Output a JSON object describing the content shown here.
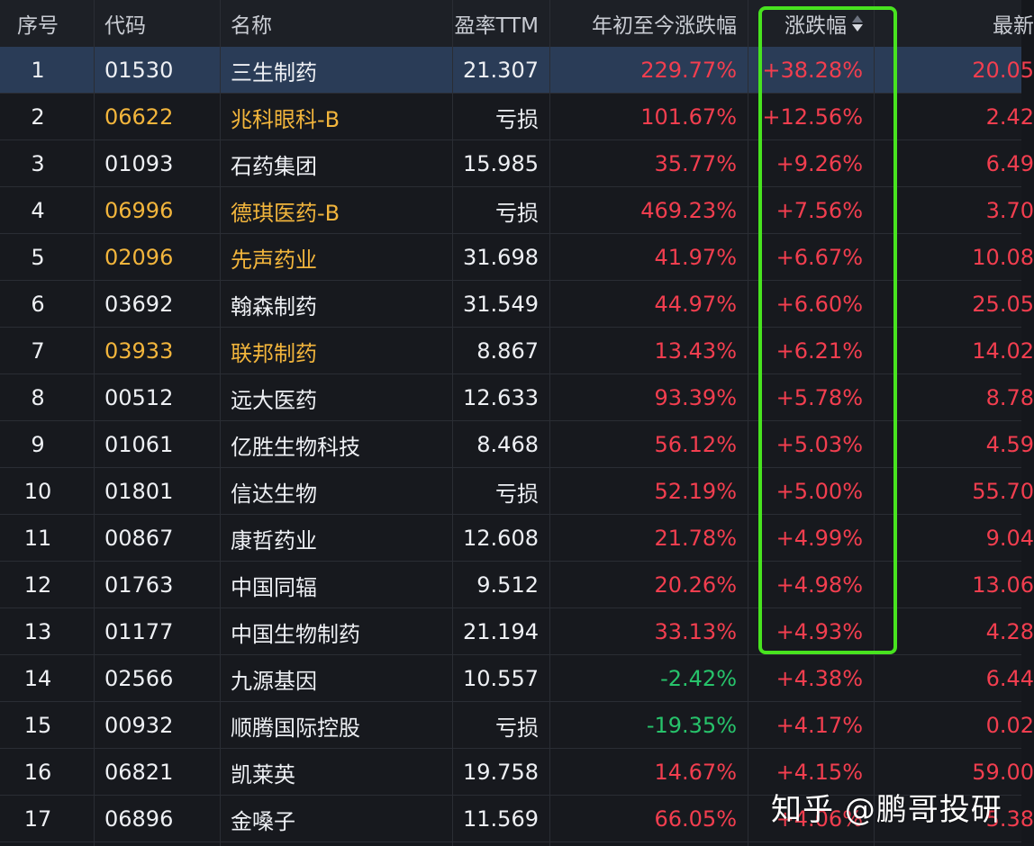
{
  "header": {
    "seq": "序号",
    "code": "代码",
    "name": "名称",
    "pe": "盈率TTM",
    "ytd": "年初至今涨跌幅",
    "chg": "涨跌幅",
    "last": "最新"
  },
  "rows": [
    {
      "seq": "1",
      "code": "01530",
      "name": "三生制药",
      "pe": "21.307",
      "ytd": "229.77%",
      "chg": "+38.28%",
      "last": "20.05"
    },
    {
      "seq": "2",
      "code": "06622",
      "name": "兆科眼科-B",
      "pe": "亏损",
      "ytd": "101.67%",
      "chg": "+12.56%",
      "last": "2.42"
    },
    {
      "seq": "3",
      "code": "01093",
      "name": "石药集团",
      "pe": "15.985",
      "ytd": "35.77%",
      "chg": "+9.26%",
      "last": "6.49"
    },
    {
      "seq": "4",
      "code": "06996",
      "name": "德琪医药-B",
      "pe": "亏损",
      "ytd": "469.23%",
      "chg": "+7.56%",
      "last": "3.70"
    },
    {
      "seq": "5",
      "code": "02096",
      "name": "先声药业",
      "pe": "31.698",
      "ytd": "41.97%",
      "chg": "+6.67%",
      "last": "10.08"
    },
    {
      "seq": "6",
      "code": "03692",
      "name": "翰森制药",
      "pe": "31.549",
      "ytd": "44.97%",
      "chg": "+6.60%",
      "last": "25.05"
    },
    {
      "seq": "7",
      "code": "03933",
      "name": "联邦制药",
      "pe": "8.867",
      "ytd": "13.43%",
      "chg": "+6.21%",
      "last": "14.02"
    },
    {
      "seq": "8",
      "code": "00512",
      "name": "远大医药",
      "pe": "12.633",
      "ytd": "93.39%",
      "chg": "+5.78%",
      "last": "8.78"
    },
    {
      "seq": "9",
      "code": "01061",
      "name": "亿胜生物科技",
      "pe": "8.468",
      "ytd": "56.12%",
      "chg": "+5.03%",
      "last": "4.59"
    },
    {
      "seq": "10",
      "code": "01801",
      "name": "信达生物",
      "pe": "亏损",
      "ytd": "52.19%",
      "chg": "+5.00%",
      "last": "55.70"
    },
    {
      "seq": "11",
      "code": "00867",
      "name": "康哲药业",
      "pe": "12.608",
      "ytd": "21.78%",
      "chg": "+4.99%",
      "last": "9.04"
    },
    {
      "seq": "12",
      "code": "01763",
      "name": "中国同辐",
      "pe": "9.512",
      "ytd": "20.26%",
      "chg": "+4.98%",
      "last": "13.06"
    },
    {
      "seq": "13",
      "code": "01177",
      "name": "中国生物制药",
      "pe": "21.194",
      "ytd": "33.13%",
      "chg": "+4.93%",
      "last": "4.28"
    },
    {
      "seq": "14",
      "code": "02566",
      "name": "九源基因",
      "pe": "10.557",
      "ytd": "-2.42%",
      "chg": "+4.38%",
      "last": "6.44"
    },
    {
      "seq": "15",
      "code": "00932",
      "name": "顺腾国际控股",
      "pe": "亏损",
      "ytd": "-19.35%",
      "chg": "+4.17%",
      "last": "0.02"
    },
    {
      "seq": "16",
      "code": "06821",
      "name": "凯莱英",
      "pe": "19.758",
      "ytd": "14.67%",
      "chg": "+4.15%",
      "last": "59.00"
    },
    {
      "seq": "17",
      "code": "06896",
      "name": "金嗓子",
      "pe": "11.569",
      "ytd": "66.05%",
      "chg": "+4.06%",
      "last": "5.38"
    }
  ],
  "watermark": "知乎 @鹏哥投研",
  "colors": {
    "up": "#f23e4f",
    "down": "#27c36b",
    "highlight": "#48e31f",
    "hk_connect": "#f2b53c"
  }
}
